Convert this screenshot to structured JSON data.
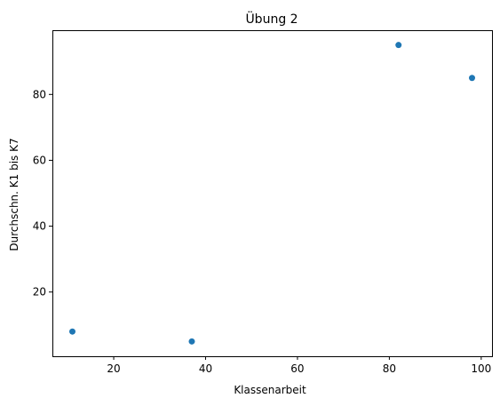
{
  "chart_data": {
    "type": "scatter",
    "title": "Übung 2",
    "xlabel": "Klassenarbeit",
    "ylabel": "Durchschn. K1 bis K7",
    "x": [
      11,
      37,
      82,
      98
    ],
    "y": [
      8,
      5,
      95,
      85
    ],
    "xlim": [
      6.65,
      102.35
    ],
    "ylim": [
      0.5,
      99.5
    ],
    "xticks": [
      20,
      40,
      60,
      80,
      100
    ],
    "yticks": [
      20,
      40,
      60,
      80
    ],
    "point_color": "#1f77b4",
    "grid": false,
    "legend": "none"
  }
}
